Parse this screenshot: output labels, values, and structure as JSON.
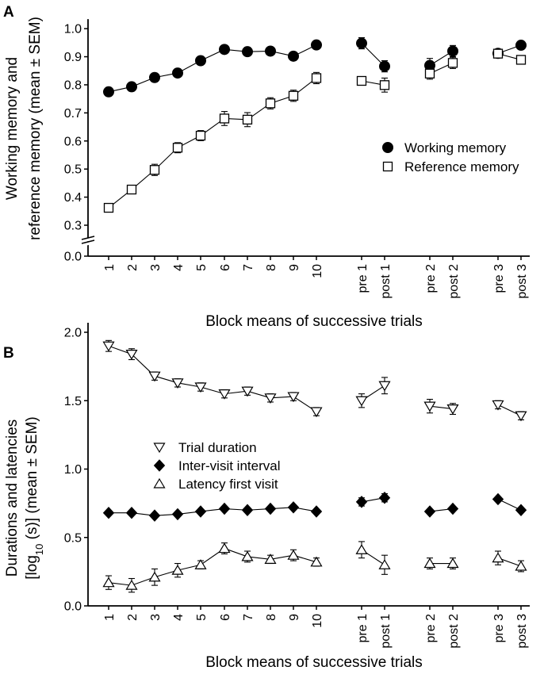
{
  "figure": {
    "colors": {
      "ink": "#000000",
      "fill_open": "#ffffff"
    }
  },
  "chart_data": [
    {
      "panel": "A",
      "type": "line",
      "ylabel_line1": "Working memory and",
      "ylabel_line2": "reference memory (mean ± SEM)",
      "xlabel": "Block means of successive  trials",
      "ylim": [
        0.0,
        1.05
      ],
      "yticks": [
        "0.0",
        "0.3",
        "0.4",
        "0.5",
        "0.6",
        "0.7",
        "0.8",
        "0.9",
        "1.0"
      ],
      "ytick_values": [
        0.0,
        0.3,
        0.4,
        0.5,
        0.6,
        0.7,
        0.8,
        0.9,
        1.0
      ],
      "axis_break": [
        0.0,
        0.3
      ],
      "categories": [
        "1",
        "2",
        "3",
        "4",
        "5",
        "6",
        "7",
        "8",
        "9",
        "10",
        "pre 1",
        "post 1",
        "pre 2",
        "post 2",
        "pre 3",
        "post 3"
      ],
      "segments": [
        [
          0,
          9
        ],
        [
          10,
          11
        ],
        [
          12,
          13
        ],
        [
          14,
          15
        ]
      ],
      "legend_position": "center-right",
      "series": [
        {
          "name": "Working memory",
          "marker": "circle-filled",
          "values": [
            0.775,
            0.793,
            0.826,
            0.842,
            0.886,
            0.926,
            0.918,
            0.92,
            0.902,
            0.942,
            0.948,
            0.866,
            0.869,
            0.92,
            0.912,
            0.941
          ],
          "sem": [
            0.015,
            0.015,
            0.015,
            0.015,
            0.015,
            0.01,
            0.015,
            0.01,
            0.015,
            0.012,
            0.02,
            0.02,
            0.025,
            0.02,
            0.012,
            0.012
          ]
        },
        {
          "name": "Reference memory",
          "marker": "square-open",
          "values": [
            0.362,
            0.427,
            0.497,
            0.576,
            0.619,
            0.68,
            0.676,
            0.734,
            0.761,
            0.824,
            0.814,
            0.799,
            0.84,
            0.878,
            0.911,
            0.889
          ],
          "sem": [
            0.005,
            0.01,
            0.02,
            0.018,
            0.018,
            0.025,
            0.025,
            0.02,
            0.02,
            0.02,
            0.015,
            0.025,
            0.02,
            0.02,
            0.012,
            0.01
          ]
        }
      ]
    },
    {
      "panel": "B",
      "type": "line",
      "ylabel_line1": "Durations and latencies",
      "ylabel_line2_pre": "[log",
      "ylabel_line2_sub": "10",
      "ylabel_line2_post": " (s)] (mean ± SEM)",
      "xlabel": "Block means of successive trials",
      "ylim": [
        0.0,
        2.1
      ],
      "yticks": [
        "0.0",
        "0.5",
        "1.0",
        "1.5",
        "2.0"
      ],
      "ytick_values": [
        0.0,
        0.5,
        1.0,
        1.5,
        2.0
      ],
      "categories": [
        "1",
        "2",
        "3",
        "4",
        "5",
        "6",
        "7",
        "8",
        "9",
        "10",
        "pre 1",
        "post 1",
        "pre 2",
        "post 2",
        "pre 3",
        "post 3"
      ],
      "segments": [
        [
          0,
          9
        ],
        [
          10,
          11
        ],
        [
          12,
          13
        ],
        [
          14,
          15
        ]
      ],
      "legend_position": "center-left",
      "series": [
        {
          "name": "Trial duration",
          "marker": "triangle-down-open",
          "values": [
            1.9,
            1.84,
            1.68,
            1.63,
            1.6,
            1.55,
            1.57,
            1.52,
            1.53,
            1.42,
            1.5,
            1.61,
            1.46,
            1.44,
            1.47,
            1.39
          ],
          "sem": [
            0.04,
            0.04,
            0.03,
            0.03,
            0.03,
            0.03,
            0.03,
            0.03,
            0.03,
            0.03,
            0.05,
            0.06,
            0.05,
            0.04,
            0.03,
            0.03
          ]
        },
        {
          "name": "Inter-visit interval",
          "marker": "diamond-filled",
          "values": [
            0.68,
            0.68,
            0.66,
            0.67,
            0.69,
            0.71,
            0.7,
            0.71,
            0.72,
            0.69,
            0.76,
            0.79,
            0.69,
            0.71,
            0.78,
            0.7
          ],
          "sem": [
            0.01,
            0.01,
            0.01,
            0.01,
            0.01,
            0.01,
            0.01,
            0.01,
            0.01,
            0.01,
            0.03,
            0.03,
            0.01,
            0.01,
            0.01,
            0.01
          ]
        },
        {
          "name": "Latency first visit",
          "marker": "triangle-up-open",
          "values": [
            0.17,
            0.15,
            0.21,
            0.26,
            0.3,
            0.42,
            0.36,
            0.34,
            0.37,
            0.32,
            0.41,
            0.3,
            0.31,
            0.31,
            0.35,
            0.29
          ],
          "sem": [
            0.05,
            0.05,
            0.06,
            0.05,
            0.03,
            0.04,
            0.04,
            0.03,
            0.04,
            0.03,
            0.06,
            0.07,
            0.04,
            0.04,
            0.05,
            0.04
          ]
        }
      ]
    }
  ]
}
